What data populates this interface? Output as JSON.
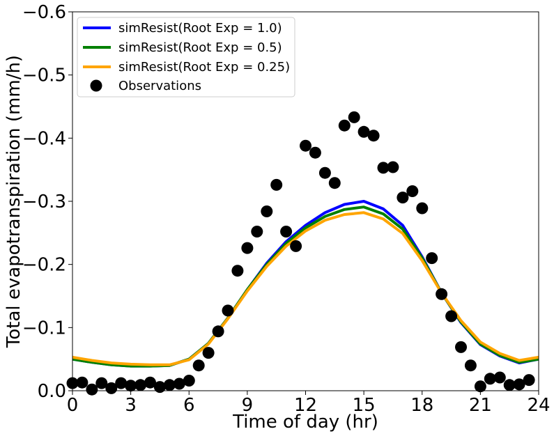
{
  "chart_data": {
    "type": "line",
    "xlabel": "Time of day (hr)",
    "ylabel": "Total evapotranspiration (mm/h)",
    "xlim": [
      0,
      24
    ],
    "ylim": [
      0,
      -0.6
    ],
    "y_inverted": true,
    "grid": false,
    "legend_position": "top-left",
    "x_ticks": [
      0,
      3,
      6,
      9,
      12,
      15,
      18,
      21,
      24
    ],
    "x_tick_labels": [
      "0",
      "3",
      "6",
      "9",
      "12",
      "15",
      "18",
      "21",
      "24"
    ],
    "y_ticks": [
      0,
      -0.1,
      -0.2,
      -0.3,
      -0.4,
      -0.5,
      -0.6
    ],
    "y_tick_labels": [
      "0.0",
      "−0.1",
      "−0.2",
      "−0.3",
      "−0.4",
      "−0.5",
      "−0.6"
    ],
    "x": [
      0,
      1,
      2,
      3,
      4,
      5,
      6,
      7,
      8,
      9,
      10,
      11,
      12,
      13,
      14,
      15,
      16,
      17,
      18,
      19,
      20,
      21,
      22,
      23,
      24
    ],
    "series": [
      {
        "name": "simResist(Root Exp = 1.0)",
        "color": "#0000ff",
        "values": [
          -0.05,
          -0.045,
          -0.041,
          -0.039,
          -0.039,
          -0.04,
          -0.05,
          -0.075,
          -0.115,
          -0.16,
          -0.202,
          -0.236,
          -0.262,
          -0.282,
          -0.295,
          -0.3,
          -0.288,
          -0.262,
          -0.212,
          -0.155,
          -0.108,
          -0.073,
          -0.055,
          -0.044,
          -0.05
        ]
      },
      {
        "name": "simResist(Root Exp = 0.5)",
        "color": "#008000",
        "values": [
          -0.05,
          -0.045,
          -0.041,
          -0.039,
          -0.039,
          -0.04,
          -0.05,
          -0.075,
          -0.115,
          -0.16,
          -0.2,
          -0.233,
          -0.258,
          -0.276,
          -0.287,
          -0.291,
          -0.28,
          -0.256,
          -0.21,
          -0.155,
          -0.109,
          -0.074,
          -0.056,
          -0.045,
          -0.05
        ]
      },
      {
        "name": "simResist(Root Exp = 0.25)",
        "color": "#ffa500",
        "values": [
          -0.053,
          -0.048,
          -0.044,
          -0.042,
          -0.041,
          -0.041,
          -0.049,
          -0.074,
          -0.114,
          -0.158,
          -0.197,
          -0.229,
          -0.253,
          -0.27,
          -0.279,
          -0.282,
          -0.272,
          -0.249,
          -0.206,
          -0.155,
          -0.111,
          -0.077,
          -0.059,
          -0.048,
          -0.053
        ]
      }
    ],
    "observations": {
      "name": "Observations",
      "color": "#000000",
      "x": [
        0,
        0.5,
        1,
        1.5,
        2,
        2.5,
        3,
        3.5,
        4,
        4.5,
        5,
        5.5,
        6,
        6.5,
        7,
        7.5,
        8,
        8.5,
        9,
        9.5,
        10,
        10.5,
        11,
        11.5,
        12,
        12.5,
        13,
        13.5,
        14,
        14.5,
        15,
        15.5,
        16,
        16.5,
        17,
        17.5,
        18,
        18.5,
        19,
        19.5,
        20,
        20.5,
        21,
        21.5,
        22,
        22.5,
        23,
        23.5
      ],
      "y": [
        -0.012,
        -0.013,
        -0.002,
        -0.012,
        -0.004,
        -0.012,
        -0.008,
        -0.009,
        -0.013,
        -0.006,
        -0.009,
        -0.011,
        -0.016,
        -0.04,
        -0.06,
        -0.094,
        -0.127,
        -0.19,
        -0.226,
        -0.252,
        -0.284,
        -0.326,
        -0.252,
        -0.229,
        -0.388,
        -0.377,
        -0.345,
        -0.329,
        -0.42,
        -0.433,
        -0.41,
        -0.404,
        -0.353,
        -0.354,
        -0.306,
        -0.316,
        -0.289,
        -0.21,
        -0.153,
        -0.118,
        -0.069,
        -0.04,
        -0.007,
        -0.019,
        -0.021,
        -0.009,
        -0.01,
        -0.017
      ]
    }
  }
}
